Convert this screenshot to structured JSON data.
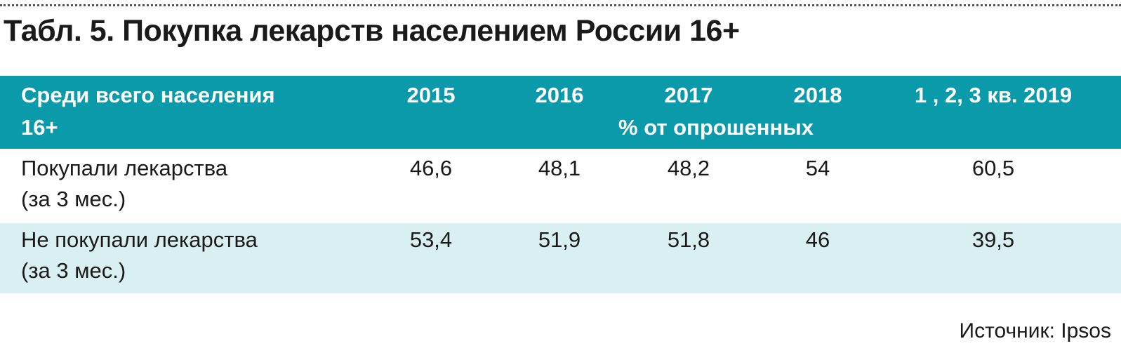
{
  "header": {
    "title": "Табл. 5. Покупка лекарств населением России 16+"
  },
  "table": {
    "corner": [
      "Среди всего населения",
      "16+"
    ],
    "columns": [
      "2015",
      "2016",
      "2017",
      "2018",
      "1 , 2, 3 кв. 2019"
    ],
    "unit": "% от опрошенных",
    "rows": [
      {
        "label": [
          "Покупали лекарства",
          "(за 3 мес.)"
        ],
        "cells": [
          "46,6",
          "48,1",
          "48,2",
          "54",
          "60,5"
        ]
      },
      {
        "label": [
          "Не покупали лекарства",
          "(за 3 мес.)"
        ],
        "cells": [
          "53,4",
          "51,9",
          "51,8",
          "46",
          "39,5"
        ]
      }
    ]
  },
  "footer": {
    "source": "Источник: Ipsos"
  }
}
